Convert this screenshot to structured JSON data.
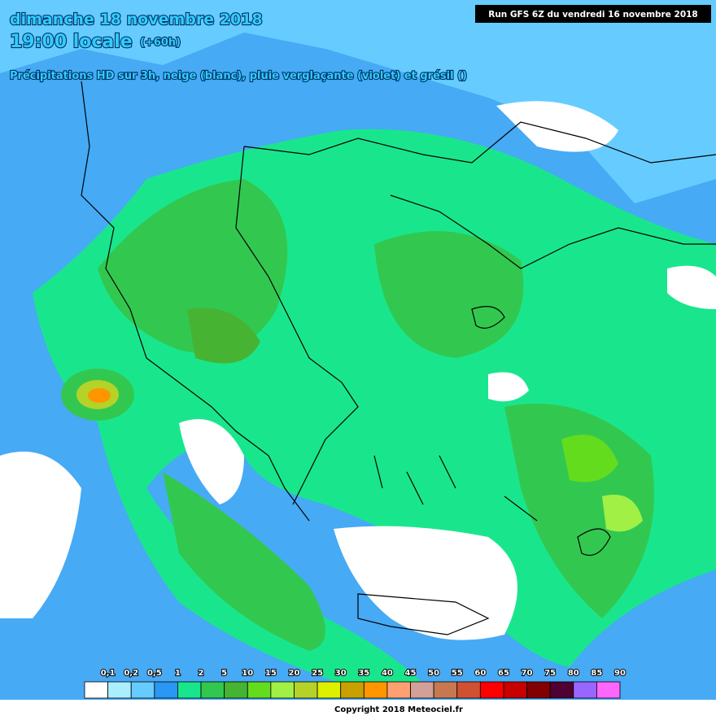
{
  "header": {
    "title": "dimanche 18 novembre 2018",
    "time": "19:00 locale",
    "lead": "(+60h)",
    "subtitle": "Précipitations HD sur 3h, neige (blanc), pluie verglaçante (violet) et grésil ()",
    "run": "Run GFS 6Z du vendredi 16 novembre 2018"
  },
  "legend": {
    "items": [
      {
        "label": "0,1",
        "color": "#ffffff"
      },
      {
        "label": "0,2",
        "color": "#aaeeff"
      },
      {
        "label": "0,5",
        "color": "#66ccff"
      },
      {
        "label": "1",
        "color": "#2a96f5"
      },
      {
        "label": "2",
        "color": "#19e68c"
      },
      {
        "label": "5",
        "color": "#32c850"
      },
      {
        "label": "10",
        "color": "#46b432"
      },
      {
        "label": "15",
        "color": "#64dc1e"
      },
      {
        "label": "20",
        "color": "#a0f046"
      },
      {
        "label": "25",
        "color": "#b4d228"
      },
      {
        "label": "30",
        "color": "#dcf000"
      },
      {
        "label": "35",
        "color": "#c8a000"
      },
      {
        "label": "40",
        "color": "#ff9600"
      },
      {
        "label": "45",
        "color": "#ffa070"
      },
      {
        "label": "50",
        "color": "#d2a096"
      },
      {
        "label": "55",
        "color": "#c87850"
      },
      {
        "label": "60",
        "color": "#d25032"
      },
      {
        "label": "65",
        "color": "#ff0000"
      },
      {
        "label": "70",
        "color": "#c80000"
      },
      {
        "label": "75",
        "color": "#820000"
      },
      {
        "label": "80",
        "color": "#500032"
      },
      {
        "label": "85",
        "color": "#9966ff"
      },
      {
        "label": "90",
        "color": "#ff66ff"
      }
    ]
  },
  "copyright": "Copyright 2018 Meteociel.fr"
}
